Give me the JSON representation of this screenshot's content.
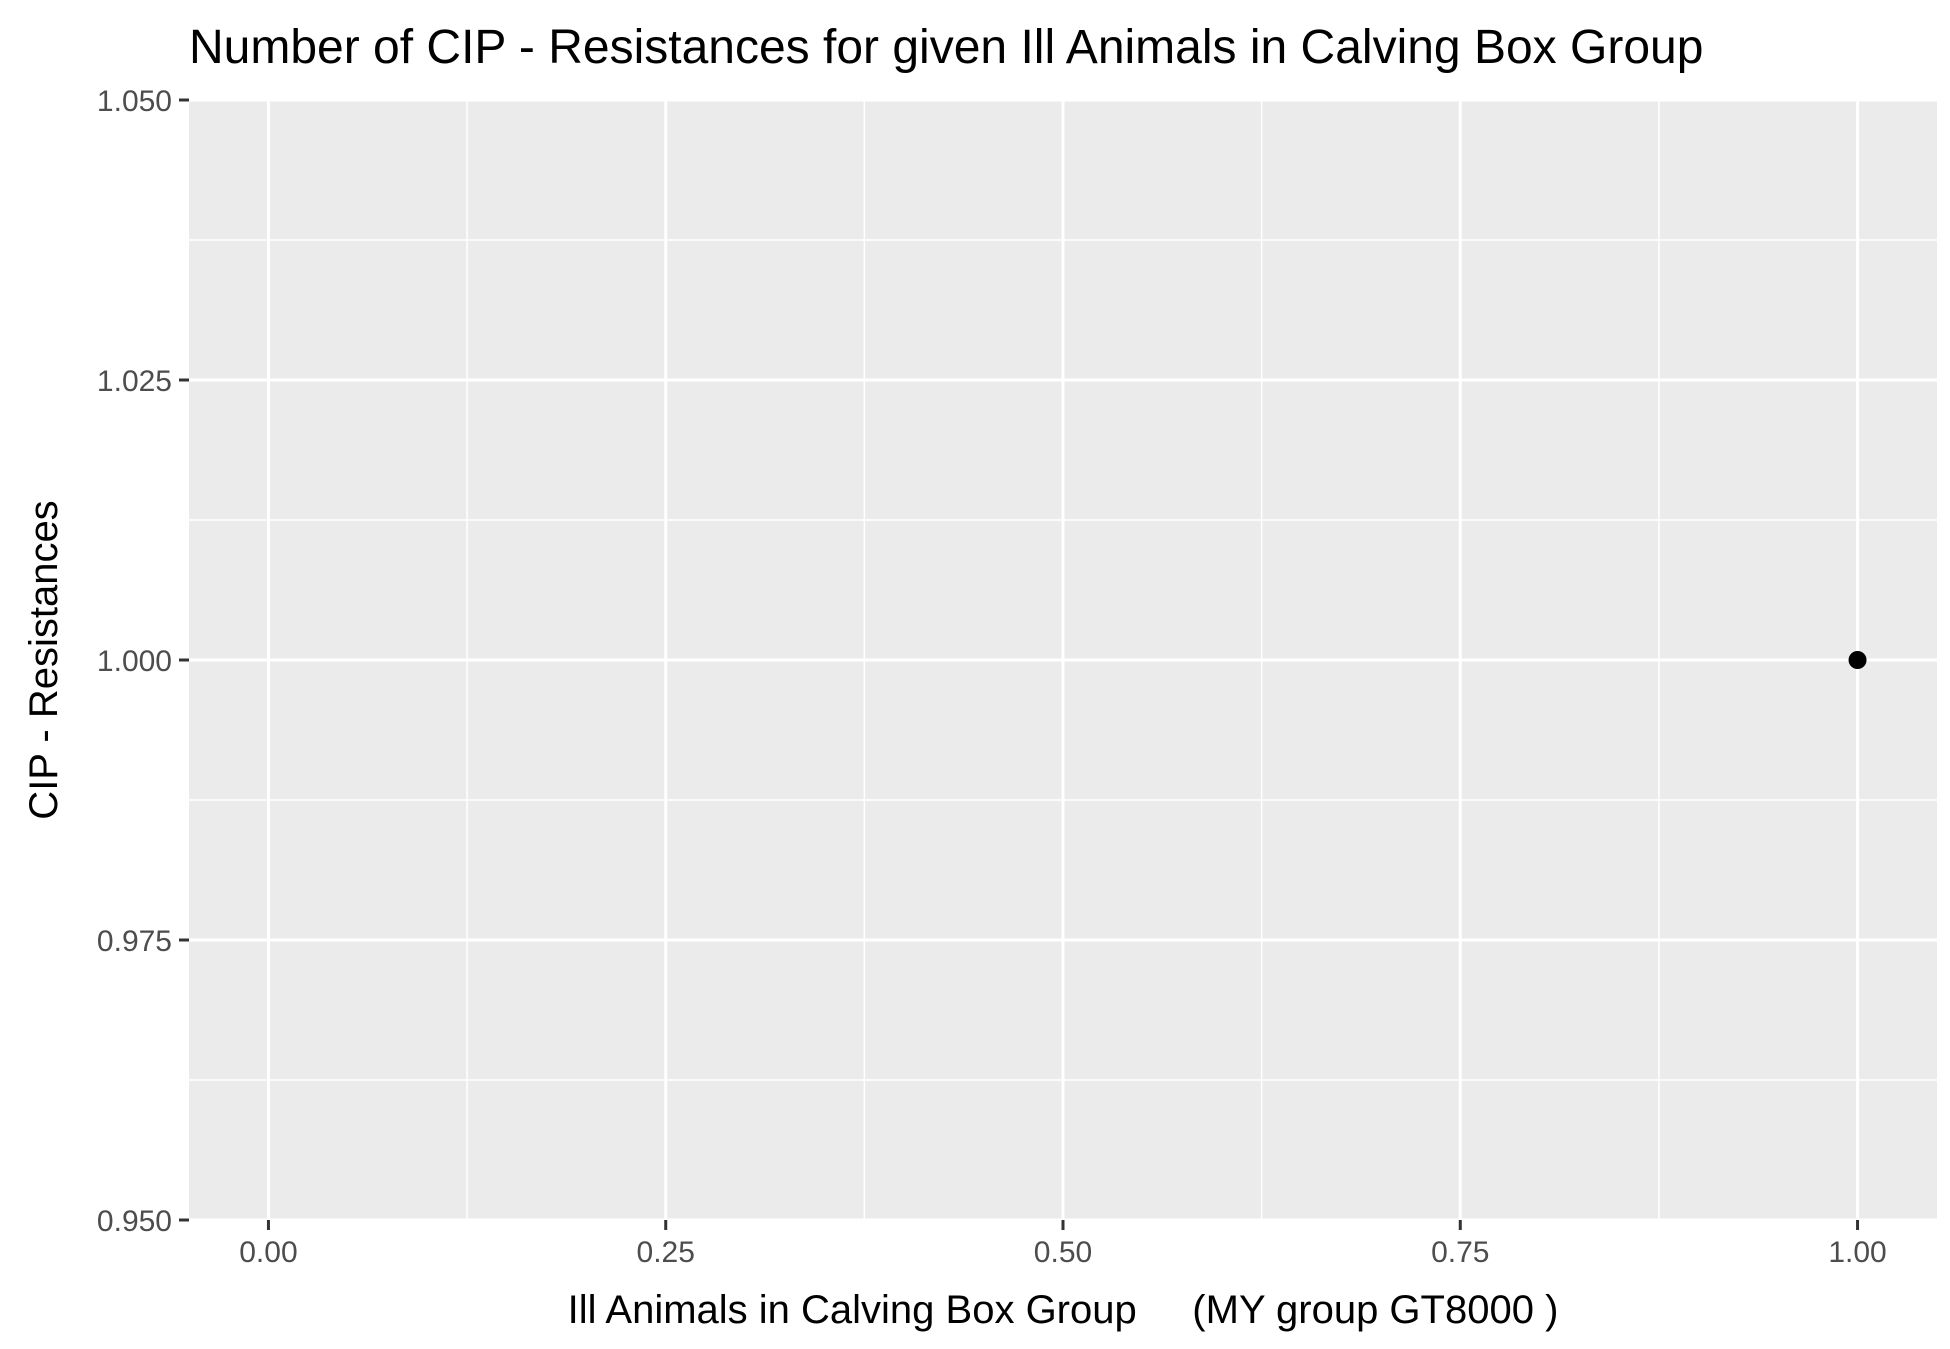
{
  "chart_data": {
    "type": "scatter",
    "title": "Number of CIP - Resistances for given Ill Animals in Calving Box Group",
    "xlabel": "Ill Animals in Calving Box Group     (MY group GT8000 )",
    "ylabel": "CIP - Resistances",
    "xlim": [
      -0.05,
      1.05
    ],
    "ylim": [
      0.95,
      1.05
    ],
    "x_ticks": [
      0.0,
      0.25,
      0.5,
      0.75,
      1.0
    ],
    "x_tick_labels": [
      "0.00",
      "0.25",
      "0.50",
      "0.75",
      "1.00"
    ],
    "y_ticks": [
      0.95,
      0.975,
      1.0,
      1.025,
      1.05
    ],
    "y_tick_labels": [
      "0.950",
      "0.975",
      "1.000",
      "1.025",
      "1.050"
    ],
    "grid": true,
    "panel_background": "#ebebeb",
    "grid_color": "#ffffff",
    "point_color": "#000000",
    "points": [
      {
        "x": 1.0,
        "y": 1.0
      }
    ]
  }
}
